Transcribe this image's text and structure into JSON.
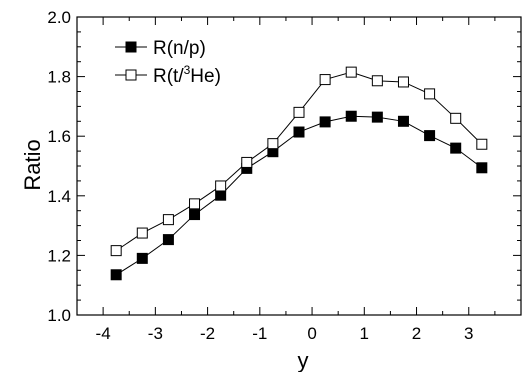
{
  "chart_data": {
    "type": "line",
    "xlabel": "y",
    "ylabel": "Ratio",
    "xlim": [
      -4.5,
      4.0
    ],
    "ylim": [
      1.0,
      2.0
    ],
    "x_ticks": [
      -4,
      -3,
      -2,
      -1,
      0,
      1,
      2,
      3
    ],
    "x_tick_labels": [
      "-4",
      "-3",
      "-2",
      "-1",
      "0",
      "1",
      "2",
      "3"
    ],
    "y_ticks": [
      1.0,
      1.2,
      1.4,
      1.6,
      1.8,
      2.0
    ],
    "y_tick_labels": [
      "1.0",
      "1.2",
      "1.4",
      "1.6",
      "1.8",
      "2.0"
    ],
    "grid": false,
    "legend_position": "top-left",
    "x": [
      -3.75,
      -3.25,
      -2.75,
      -2.25,
      -1.75,
      -1.25,
      -0.75,
      -0.25,
      0.25,
      0.75,
      1.25,
      1.75,
      2.25,
      2.75,
      3.25
    ],
    "series": [
      {
        "name": "R(n/p)",
        "legend_parts": [
          "R(n/p)",
          "",
          ""
        ],
        "marker": "filled-square",
        "values": [
          1.135,
          1.19,
          1.253,
          1.337,
          1.402,
          1.492,
          1.548,
          1.614,
          1.648,
          1.667,
          1.664,
          1.65,
          1.602,
          1.56,
          1.494
        ]
      },
      {
        "name": "R(t/3He)",
        "legend_parts": [
          "R(t/",
          "3",
          "He)"
        ],
        "marker": "open-square",
        "values": [
          1.216,
          1.275,
          1.32,
          1.373,
          1.433,
          1.512,
          1.575,
          1.68,
          1.79,
          1.815,
          1.786,
          1.782,
          1.742,
          1.66,
          1.573
        ]
      }
    ],
    "colors": {
      "line": "#000000",
      "background": "#ffffff"
    }
  }
}
